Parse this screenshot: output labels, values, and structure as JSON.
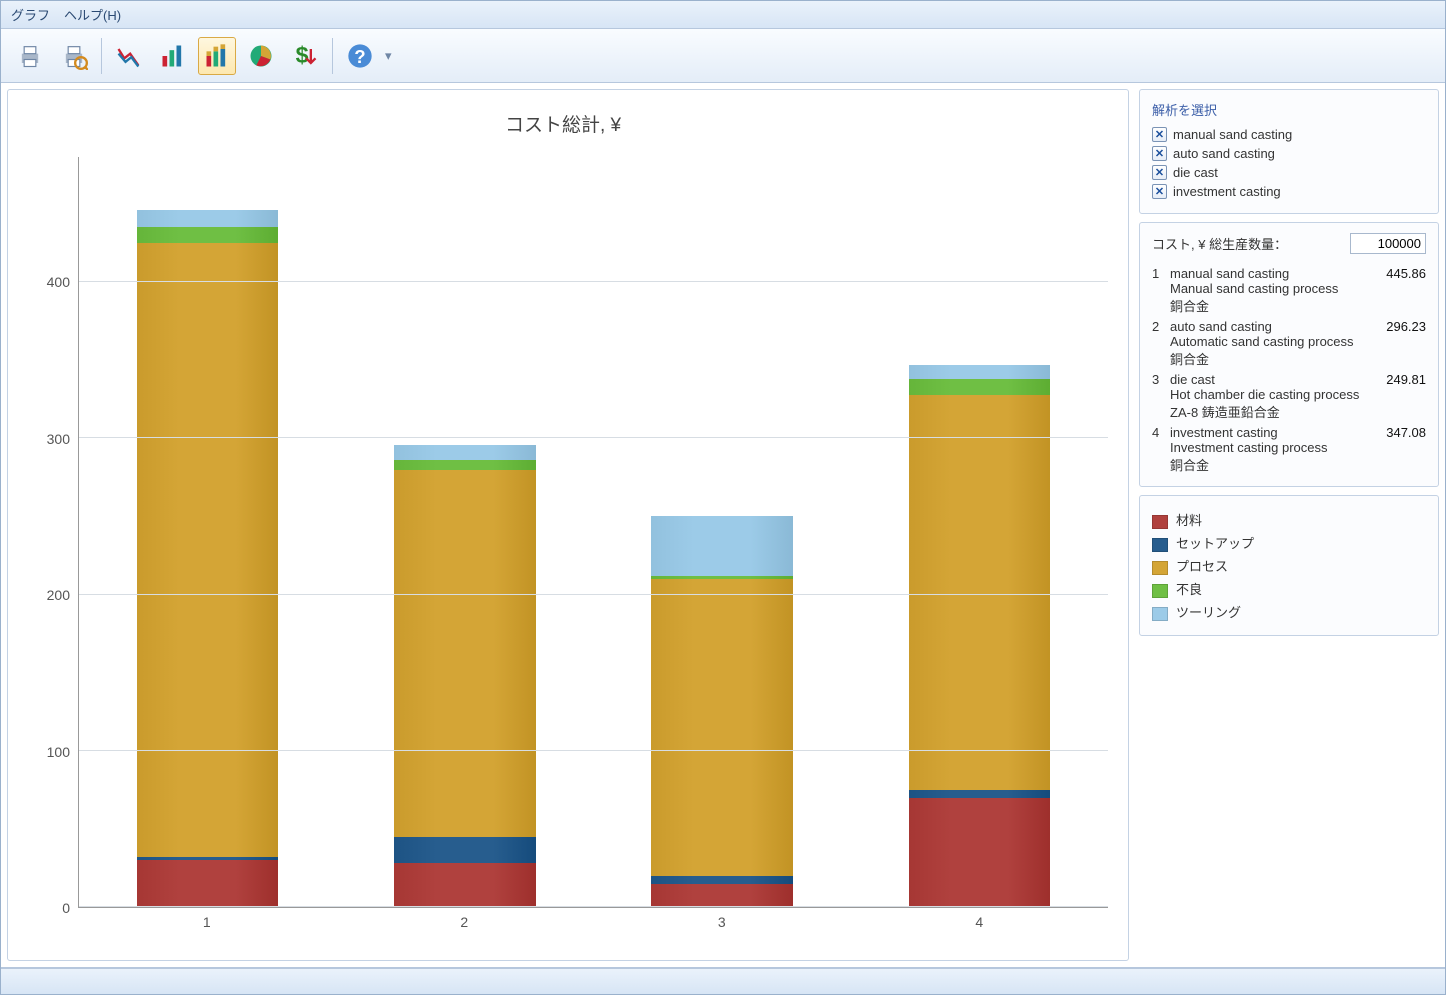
{
  "menu": {
    "graph": "グラフ",
    "help": "ヘルプ(H)"
  },
  "toolbar_icons": [
    "print",
    "print-preview",
    "line-chart",
    "bar-chart",
    "stacked-bar-chart",
    "pie-chart",
    "money-arrow",
    "help-round"
  ],
  "toolbar_active_index": 4,
  "chart": {
    "title": "コスト総計, ¥",
    "ylim": [
      0,
      480
    ],
    "yticks": [
      0,
      100,
      200,
      300,
      400
    ],
    "grid_color": "#d7dde3",
    "axis_color": "#999999",
    "background": "#ffffff",
    "categories": [
      "1",
      "2",
      "3",
      "4"
    ],
    "stacks": [
      {
        "material": 30,
        "setup": 2,
        "process": 393,
        "defect": 10,
        "tooling": 11
      },
      {
        "material": 28,
        "setup": 17,
        "process": 235,
        "defect": 6,
        "tooling": 10
      },
      {
        "material": 15,
        "setup": 5,
        "process": 190,
        "defect": 2,
        "tooling": 38
      },
      {
        "material": 70,
        "setup": 5,
        "process": 253,
        "defect": 10,
        "tooling": 9
      }
    ],
    "series_order": [
      "material",
      "setup",
      "process",
      "defect",
      "tooling"
    ],
    "series_labels": {
      "material": "材料",
      "setup": "セットアップ",
      "process": "プロセス",
      "defect": "不良",
      "tooling": "ツーリング"
    },
    "series_colors": {
      "material": "#b0413e",
      "setup": "#275d8e",
      "process": "#d4a536",
      "defect": "#6fbf44",
      "tooling": "#9ccbe8"
    },
    "bar_width_pct": 55
  },
  "selector": {
    "title": "解析を選択",
    "items": [
      "manual sand casting",
      "auto sand casting",
      "die cast",
      "investment casting"
    ]
  },
  "cost_panel": {
    "qty_label": "コスト, ¥ 総生産数量：",
    "qty_value": "100000",
    "rows": [
      {
        "idx": "1",
        "name": "manual sand casting",
        "process": "Manual sand casting process",
        "material": "銅合金",
        "value": "445.86"
      },
      {
        "idx": "2",
        "name": "auto sand casting",
        "process": "Automatic sand casting process",
        "material": "銅合金",
        "value": "296.23"
      },
      {
        "idx": "3",
        "name": "die cast",
        "process": "Hot chamber die casting process",
        "material": "ZA-8 鋳造亜鉛合金",
        "value": "249.81"
      },
      {
        "idx": "4",
        "name": "investment casting",
        "process": "Investment casting process",
        "material": "銅合金",
        "value": "347.08"
      }
    ]
  }
}
